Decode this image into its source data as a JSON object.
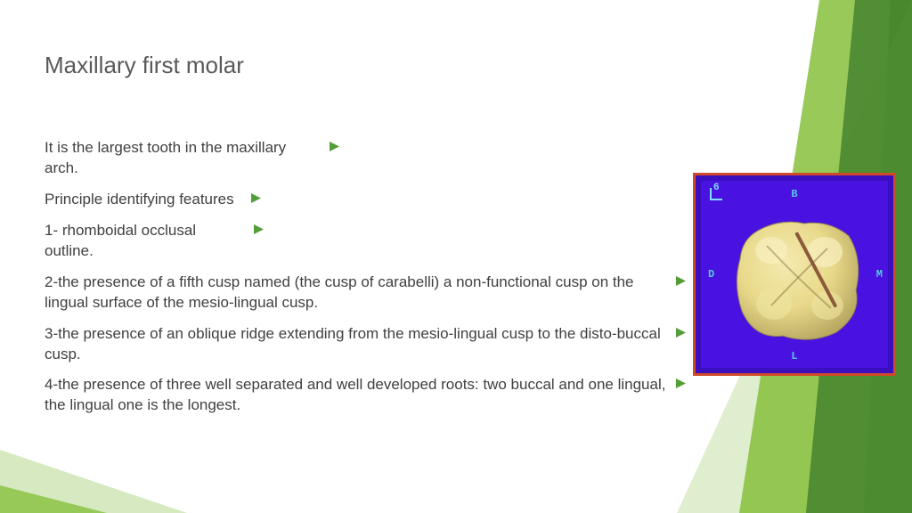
{
  "title": "Maxillary first molar",
  "bullets": [
    "It is the largest tooth in the maxillary arch.",
    "Principle identifying features",
    "1- rhomboidal occlusal outline.",
    "2-the presence of a fifth cusp named (the cusp of carabelli) a non-functional cusp on the lingual surface of the mesio-lingual cusp.",
    "3-the presence of an oblique ridge extending from the mesio-lingual cusp to the disto-buccal cusp.",
    "4-the presence of three well separated and well developed roots: two buccal and one lingual, the lingual one is the longest."
  ],
  "bullet_widths": [
    310,
    222,
    225,
    710,
    710,
    710
  ],
  "colors": {
    "accent": "#549e39",
    "bg_green_dark": "#3a7a2a",
    "bg_green_mid": "#86c03c",
    "bg_green_light": "#c5e0a5",
    "tooth_border": "#d04a2a",
    "tooth_bg": "#3b0fbd",
    "tooth_label": "#54c8e8",
    "tooth_fill": "#e8d98a",
    "tooth_shadow": "#b8a860"
  },
  "tooth_labels": {
    "top": "B",
    "right": "M",
    "bottom": "L",
    "left": "D",
    "num": "6"
  },
  "marker_size": 11
}
